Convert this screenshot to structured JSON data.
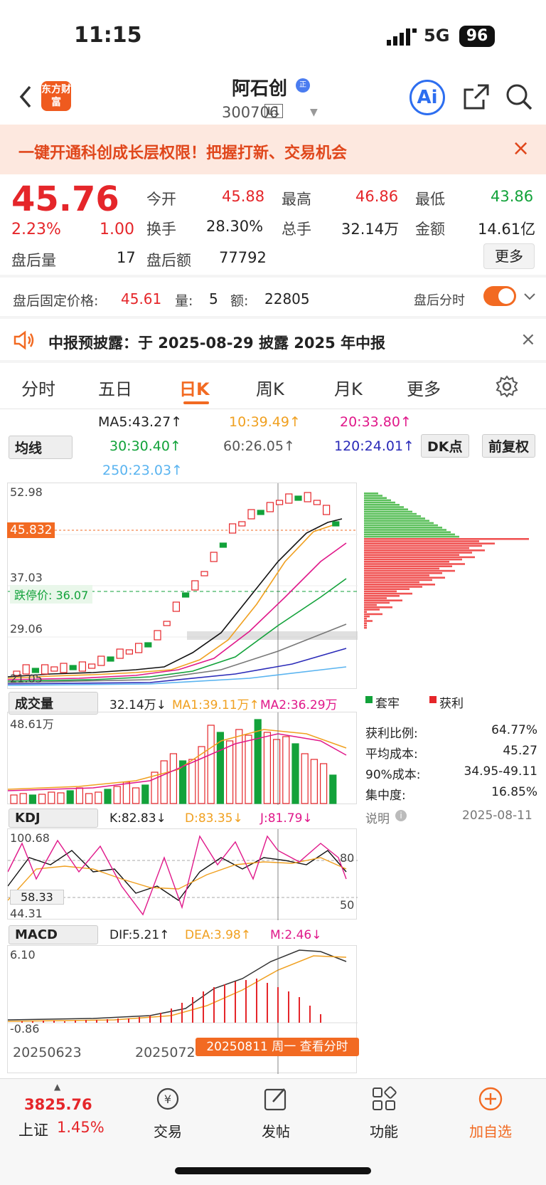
{
  "status": {
    "time": "11:15",
    "network": "5G",
    "battery": "96"
  },
  "header": {
    "logo": "东方财富",
    "name": "阿石创",
    "badge": "正",
    "code": "300706",
    "level": "L1",
    "ai": "Ai"
  },
  "banner": {
    "text": "一键开通科创成长层权限！把握打新、交易机会"
  },
  "quote": {
    "price": "45.76",
    "pct": "2.23%",
    "change": "1.00",
    "open_label": "今开",
    "open": "45.88",
    "high_label": "最高",
    "high": "46.86",
    "low_label": "最低",
    "low": "43.86",
    "turnover_label": "换手",
    "turnover": "28.30%",
    "volume_label": "总手",
    "volume": "32.14万",
    "amount_label": "金额",
    "amount": "14.61亿",
    "after_vol_label": "盘后量",
    "after_vol": "17",
    "after_amt_label": "盘后额",
    "after_amt": "77792",
    "more": "更多"
  },
  "after_hours": {
    "label": "盘后固定价格:",
    "price": "45.61",
    "qty_label": "量:",
    "qty": "5",
    "amt_label": "额:",
    "amt": "22805",
    "switch_label": "盘后分时"
  },
  "notice": {
    "text": "中报预披露：于 2025-08-29 披露 2025 年中报"
  },
  "tabs": [
    "分时",
    "五日",
    "日K",
    "周K",
    "月K",
    "更多"
  ],
  "ma": {
    "selector": "均线",
    "ma5": "MA5:43.27↑",
    "ma10": "10:39.49↑",
    "ma20": "20:33.80↑",
    "ma30": "30:30.40↑",
    "ma60": "60:26.05↑",
    "ma120": "120:24.01↑",
    "ma250": "250:23.03↑",
    "dk": "DK点",
    "fq": "前复权"
  },
  "kline": {
    "y1": "52.98",
    "y2": "45.832",
    "y3": "37.03",
    "limit": "跌停价: 36.07",
    "y4": "29.06",
    "y5": "21.05"
  },
  "volume": {
    "selector": "成交量",
    "val": "32.14万↓",
    "ma1": "MA1:39.11万↑",
    "ma2": "MA2:36.29万",
    "ytop": "48.61万"
  },
  "kdj": {
    "selector": "KDJ",
    "k": "K:82.83↓",
    "d": "D:83.35↓",
    "j": "J:81.79↓",
    "y1": "100.68",
    "y2": "58.33",
    "y3": "44.31",
    "r1": "80",
    "r2": "50"
  },
  "macd": {
    "selector": "MACD",
    "dif": "DIF:5.21↑",
    "dea": "DEA:3.98↑",
    "m": "M:2.46↓",
    "ytop": "6.10",
    "ybot": "-0.86"
  },
  "dates": {
    "d1": "20250623",
    "d2": "2025072",
    "tip": "20250811 周一 查看分时"
  },
  "chips": {
    "legend1": "套牢",
    "legend2": "获利",
    "rows": [
      [
        "获利比例:",
        "64.77%"
      ],
      [
        "平均成本:",
        "45.27"
      ],
      [
        "90%成本:",
        "34.95-49.11"
      ],
      [
        "集中度:",
        "16.85%"
      ]
    ],
    "note": "说明",
    "date": "2025-08-11"
  },
  "bottom_nav": {
    "index_val": "3825.76",
    "index_name": "上证",
    "index_pct": "1.45%",
    "items": [
      "交易",
      "发帖",
      "功能",
      "加自选"
    ]
  },
  "colors": {
    "up": "#e5262a",
    "down": "#12a23a",
    "accent": "#f26a22"
  }
}
